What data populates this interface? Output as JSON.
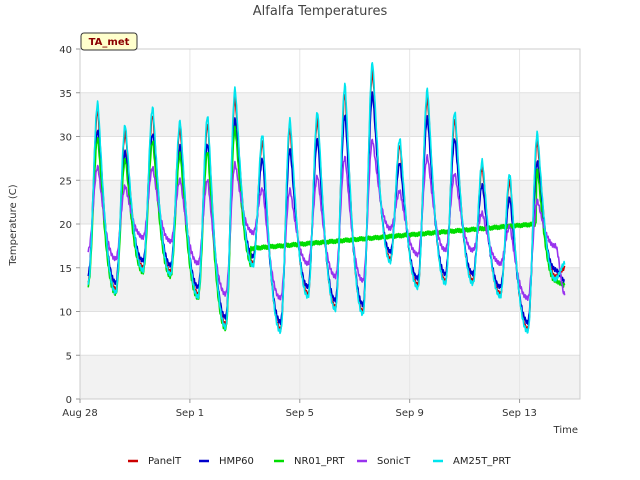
{
  "chart_data": {
    "type": "line",
    "title": "Alfalfa Temperatures",
    "xlabel": "Time",
    "ylabel": "Temperature (C)",
    "badge": "TA_met",
    "ylim": [
      0,
      40
    ],
    "yticks": [
      0,
      5,
      10,
      15,
      20,
      25,
      30,
      35,
      40
    ],
    "xlim": [
      0,
      18.2
    ],
    "xticks": [
      {
        "value": 0,
        "label": "Aug 28"
      },
      {
        "value": 4,
        "label": "Sep 1"
      },
      {
        "value": 8,
        "label": "Sep 5"
      },
      {
        "value": 12,
        "label": "Sep 9"
      },
      {
        "value": 16,
        "label": "Sep 13"
      }
    ],
    "grid": true,
    "legend_position": "bottom",
    "days": [
      {
        "start": 0.3,
        "min": 14.0,
        "max": 33.0
      },
      {
        "start": 1.3,
        "min": 13.0,
        "max": 30.5
      },
      {
        "start": 2.3,
        "min": 15.5,
        "max": 32.5
      },
      {
        "start": 3.3,
        "min": 15.0,
        "max": 31.0
      },
      {
        "start": 4.3,
        "min": 12.5,
        "max": 31.5
      },
      {
        "start": 5.3,
        "min": 9.0,
        "max": 34.5
      },
      {
        "start": 6.3,
        "min": 16.0,
        "max": 29.5
      },
      {
        "start": 7.3,
        "min": 8.5,
        "max": 31.0
      },
      {
        "start": 8.3,
        "min": 12.5,
        "max": 32.0
      },
      {
        "start": 9.3,
        "min": 11.0,
        "max": 35.0
      },
      {
        "start": 10.3,
        "min": 10.5,
        "max": 37.5
      },
      {
        "start": 11.3,
        "min": 16.5,
        "max": 29.0
      },
      {
        "start": 12.3,
        "min": 13.5,
        "max": 34.5
      },
      {
        "start": 13.3,
        "min": 14.0,
        "max": 32.0
      },
      {
        "start": 14.3,
        "min": 14.0,
        "max": 26.5
      },
      {
        "start": 15.3,
        "min": 12.5,
        "max": 25.0
      },
      {
        "start": 16.3,
        "min": 8.5,
        "max": 29.5
      },
      {
        "start": 17.3,
        "min": 14.5,
        "max": 15.0
      }
    ],
    "nr01_gap": {
      "start": 6.2,
      "end": 16.6,
      "from": 17.2,
      "to": 20.0
    },
    "series": [
      {
        "name": "PanelT",
        "color": "#cc0000",
        "offset_max": 0.0,
        "offset_min": -0.5,
        "scale": 1.0
      },
      {
        "name": "HMP60",
        "color": "#0000cc",
        "offset_max": -1.5,
        "offset_min": 0.3,
        "scale": 0.96
      },
      {
        "name": "NR01_PRT",
        "color": "#00dd00",
        "offset_max": -2.0,
        "offset_min": -1.0,
        "scale": 0.94
      },
      {
        "name": "SonicT",
        "color": "#9933ee",
        "offset_max": -3.0,
        "offset_min": 3.0,
        "scale": 0.82
      },
      {
        "name": "AM25T_PRT",
        "color": "#00e5ee",
        "offset_max": 0.5,
        "offset_min": -0.8,
        "scale": 1.02
      }
    ]
  }
}
